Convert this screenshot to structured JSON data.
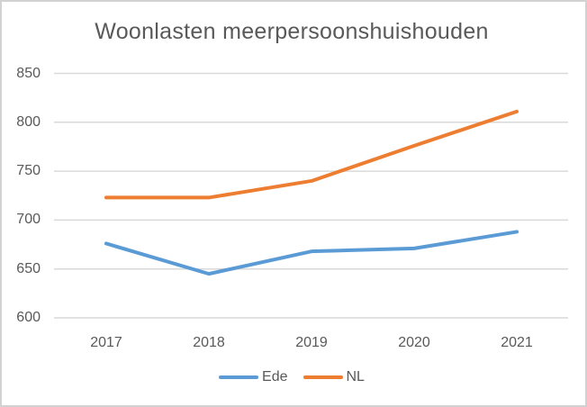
{
  "window": {
    "background": "#ffffff",
    "border_color": "#d2d2d2"
  },
  "chart_data": {
    "type": "line",
    "title": "Woonlasten meerpersoonshuishouden",
    "xlabel": "",
    "ylabel": "",
    "categories": [
      "2017",
      "2018",
      "2019",
      "2020",
      "2021"
    ],
    "series": [
      {
        "name": "Ede",
        "color": "#5B9BD5",
        "values": [
          676,
          645,
          668,
          671,
          688
        ]
      },
      {
        "name": "NL",
        "color": "#ED7D31",
        "values": [
          723,
          723,
          740,
          776,
          811
        ]
      }
    ],
    "y_axis": {
      "min": 600,
      "max": 850,
      "step": 50,
      "ticks": [
        850,
        800,
        750,
        700,
        650,
        600
      ]
    },
    "ylim": [
      600,
      850
    ],
    "grid": {
      "horizontal": true,
      "vertical": false,
      "color": "#d9d9d9"
    },
    "legend_position": "bottom",
    "text_color": "#595959",
    "line_width": 4
  }
}
